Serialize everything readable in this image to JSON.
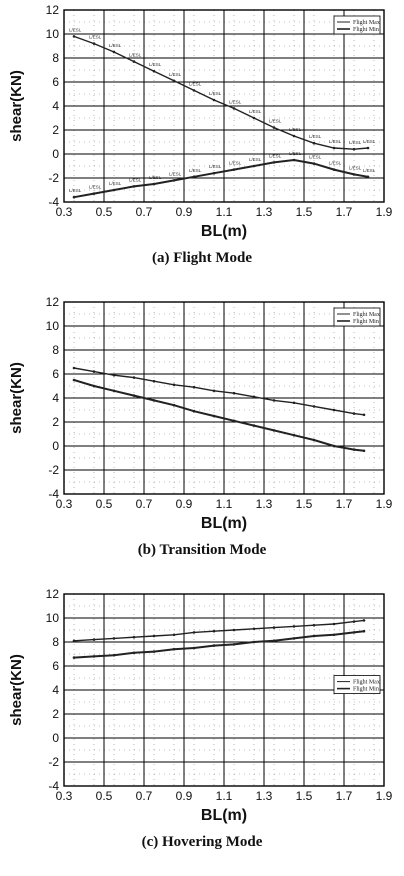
{
  "chart_data": [
    {
      "type": "line",
      "caption": "(a) Flight Mode",
      "xlabel": "BL(m)",
      "ylabel": "shear(KN)",
      "xlim": [
        0.3,
        1.9
      ],
      "ylim": [
        -4,
        12
      ],
      "xticks": [
        0.3,
        0.5,
        0.7,
        0.9,
        1.1,
        1.3,
        1.5,
        1.7,
        1.9
      ],
      "yticks": [
        -4,
        -2,
        0,
        2,
        4,
        6,
        8,
        10,
        12
      ],
      "grid": true,
      "legend_position": "top-right",
      "series": [
        {
          "name": "Flight Max",
          "x": [
            0.35,
            0.45,
            0.55,
            0.65,
            0.75,
            0.85,
            0.95,
            1.05,
            1.15,
            1.25,
            1.35,
            1.45,
            1.55,
            1.65,
            1.75,
            1.82
          ],
          "y": [
            9.8,
            9.2,
            8.5,
            7.7,
            6.9,
            6.1,
            5.3,
            4.5,
            3.8,
            3.0,
            2.2,
            1.5,
            0.9,
            0.5,
            0.4,
            0.5
          ],
          "point_labels": [
            "L/ESL",
            "L/ESL",
            "L/ESL",
            "L/ESL",
            "L/ESL",
            "L/ESL",
            "L/ESL",
            "L/ESL",
            "L/ESL",
            "L/ESL",
            "L/ESL",
            "L/ESL",
            "L/ESL",
            "L/ESL",
            "L/ESL",
            "L/ESL"
          ]
        },
        {
          "name": "Flight Min",
          "x": [
            0.35,
            0.45,
            0.55,
            0.65,
            0.75,
            0.85,
            0.95,
            1.05,
            1.15,
            1.25,
            1.35,
            1.45,
            1.55,
            1.65,
            1.75,
            1.82
          ],
          "y": [
            -3.6,
            -3.3,
            -3.0,
            -2.7,
            -2.5,
            -2.2,
            -1.9,
            -1.6,
            -1.3,
            -1.0,
            -0.7,
            -0.5,
            -0.8,
            -1.3,
            -1.7,
            -1.9
          ],
          "point_labels": [
            "L/ESL",
            "L/ESL",
            "L/ESL",
            "L/ESL",
            "L/ESL",
            "L/ESL",
            "L/ESL",
            "L/ESL",
            "L/ESL",
            "L/ESL",
            "L/ESL",
            "L/ESL",
            "L/ESL",
            "L/ESL",
            "L/ESL",
            "L/ESL"
          ]
        }
      ]
    },
    {
      "type": "line",
      "caption": "(b) Transition Mode",
      "xlabel": "BL(m)",
      "ylabel": "shear(KN)",
      "xlim": [
        0.3,
        1.9
      ],
      "ylim": [
        -4,
        12
      ],
      "xticks": [
        0.3,
        0.5,
        0.7,
        0.9,
        1.1,
        1.3,
        1.5,
        1.7,
        1.9
      ],
      "yticks": [
        -4,
        -2,
        0,
        2,
        4,
        6,
        8,
        10,
        12
      ],
      "grid": true,
      "legend_position": "top-right",
      "series": [
        {
          "name": "Flight Max",
          "x": [
            0.35,
            0.45,
            0.55,
            0.65,
            0.75,
            0.85,
            0.95,
            1.05,
            1.15,
            1.25,
            1.35,
            1.45,
            1.55,
            1.65,
            1.75,
            1.8
          ],
          "y": [
            6.5,
            6.2,
            5.9,
            5.7,
            5.4,
            5.1,
            4.9,
            4.6,
            4.4,
            4.1,
            3.8,
            3.6,
            3.3,
            3.0,
            2.7,
            2.6
          ]
        },
        {
          "name": "Flight Min",
          "x": [
            0.35,
            0.45,
            0.55,
            0.65,
            0.75,
            0.85,
            0.95,
            1.05,
            1.15,
            1.25,
            1.35,
            1.45,
            1.55,
            1.65,
            1.75,
            1.8
          ],
          "y": [
            5.5,
            5.0,
            4.6,
            4.2,
            3.8,
            3.4,
            2.9,
            2.5,
            2.1,
            1.7,
            1.3,
            0.9,
            0.5,
            0.0,
            -0.3,
            -0.4
          ]
        }
      ]
    },
    {
      "type": "line",
      "caption": "(c) Hovering Mode",
      "xlabel": "BL(m)",
      "ylabel": "shear(KN)",
      "xlim": [
        0.3,
        1.9
      ],
      "ylim": [
        -4,
        12
      ],
      "xticks": [
        0.3,
        0.5,
        0.7,
        0.9,
        1.1,
        1.3,
        1.5,
        1.7,
        1.9
      ],
      "yticks": [
        -4,
        -2,
        0,
        2,
        4,
        6,
        8,
        10,
        12
      ],
      "grid": true,
      "legend_position": "right",
      "series": [
        {
          "name": "Flight Max",
          "x": [
            0.35,
            0.45,
            0.55,
            0.65,
            0.75,
            0.85,
            0.95,
            1.05,
            1.15,
            1.25,
            1.35,
            1.45,
            1.55,
            1.65,
            1.75,
            1.8
          ],
          "y": [
            8.1,
            8.2,
            8.3,
            8.4,
            8.5,
            8.6,
            8.8,
            8.9,
            9.0,
            9.1,
            9.2,
            9.3,
            9.4,
            9.5,
            9.7,
            9.8
          ]
        },
        {
          "name": "Flight Min",
          "x": [
            0.35,
            0.45,
            0.55,
            0.65,
            0.75,
            0.85,
            0.95,
            1.05,
            1.15,
            1.25,
            1.35,
            1.45,
            1.55,
            1.65,
            1.75,
            1.8
          ],
          "y": [
            6.7,
            6.8,
            6.9,
            7.1,
            7.2,
            7.4,
            7.5,
            7.7,
            7.8,
            8.0,
            8.1,
            8.3,
            8.5,
            8.6,
            8.8,
            8.9
          ]
        }
      ]
    }
  ],
  "colors": {
    "line": "#222222",
    "grid": "#000000",
    "minor_grid": "#888888"
  }
}
